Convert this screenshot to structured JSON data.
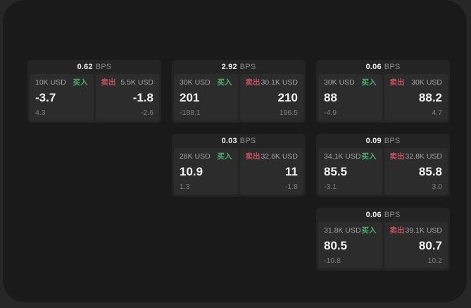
{
  "labels": {
    "buy": "买入",
    "sell": "卖出",
    "bps": "BPS"
  },
  "colors": {
    "buy": "#4daf6e",
    "sell": "#c25064",
    "background": "#272727",
    "panel": "#1a1a1a",
    "card": "#242424",
    "subpanel": "#2c2c2c"
  },
  "cards": [
    {
      "bps": "0.62",
      "buy": {
        "size": "10K USD",
        "value": "-3.7",
        "delta": "4.3"
      },
      "sell": {
        "size": "5.5K USD",
        "value": "-1.8",
        "delta": "-2.6"
      }
    },
    {
      "bps": "2.92",
      "buy": {
        "size": "30K USD",
        "value": "201",
        "delta": "-188.1"
      },
      "sell": {
        "size": "30.1K USD",
        "value": "210",
        "delta": "196.5"
      }
    },
    {
      "bps": "0.06",
      "buy": {
        "size": "30K USD",
        "value": "88",
        "delta": "-4.9"
      },
      "sell": {
        "size": "30K USD",
        "value": "88.2",
        "delta": "4.7"
      }
    },
    {
      "bps": "0.03",
      "buy": {
        "size": "28K USD",
        "value": "10.9",
        "delta": "1.3"
      },
      "sell": {
        "size": "32.6K USD",
        "value": "11",
        "delta": "-1.8"
      }
    },
    {
      "bps": "0.09",
      "buy": {
        "size": "34.1K USD",
        "value": "85.5",
        "delta": "-3.1"
      },
      "sell": {
        "size": "32.8K USD",
        "value": "85.8",
        "delta": "3.0"
      }
    },
    {
      "bps": "0.06",
      "buy": {
        "size": "31.8K USD",
        "value": "80.5",
        "delta": "-10.8"
      },
      "sell": {
        "size": "39.1K USD",
        "value": "80.7",
        "delta": "10.2"
      }
    }
  ]
}
